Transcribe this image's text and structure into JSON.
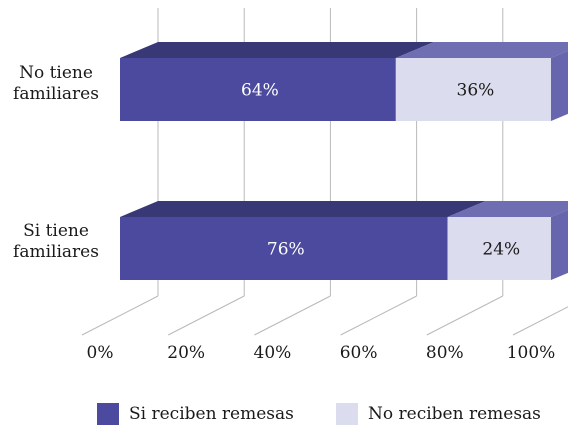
{
  "chart_data": {
    "type": "bar",
    "stacked": true,
    "orientation": "horizontal",
    "percent": true,
    "categories": [
      [
        "No tiene",
        "familiares"
      ],
      [
        "Si tiene",
        "familiares"
      ]
    ],
    "series": [
      {
        "name": "Si reciben remesas",
        "values": [
          64,
          76
        ],
        "labels": [
          "64%",
          "76%"
        ],
        "color": "#4b4a9f"
      },
      {
        "name": "No reciben remesas",
        "values": [
          36,
          24
        ],
        "labels": [
          "36%",
          "24%"
        ],
        "color": "#dcdcef"
      }
    ],
    "xlim": [
      0,
      100
    ],
    "xticks": [
      0,
      20,
      40,
      60,
      80,
      100
    ],
    "xtick_labels": [
      "0%",
      "20%",
      "40%",
      "60%",
      "80%",
      "100%"
    ],
    "title": "",
    "xlabel": "",
    "ylabel": "",
    "grid": true,
    "three_d": true,
    "legend_position": "bottom"
  }
}
